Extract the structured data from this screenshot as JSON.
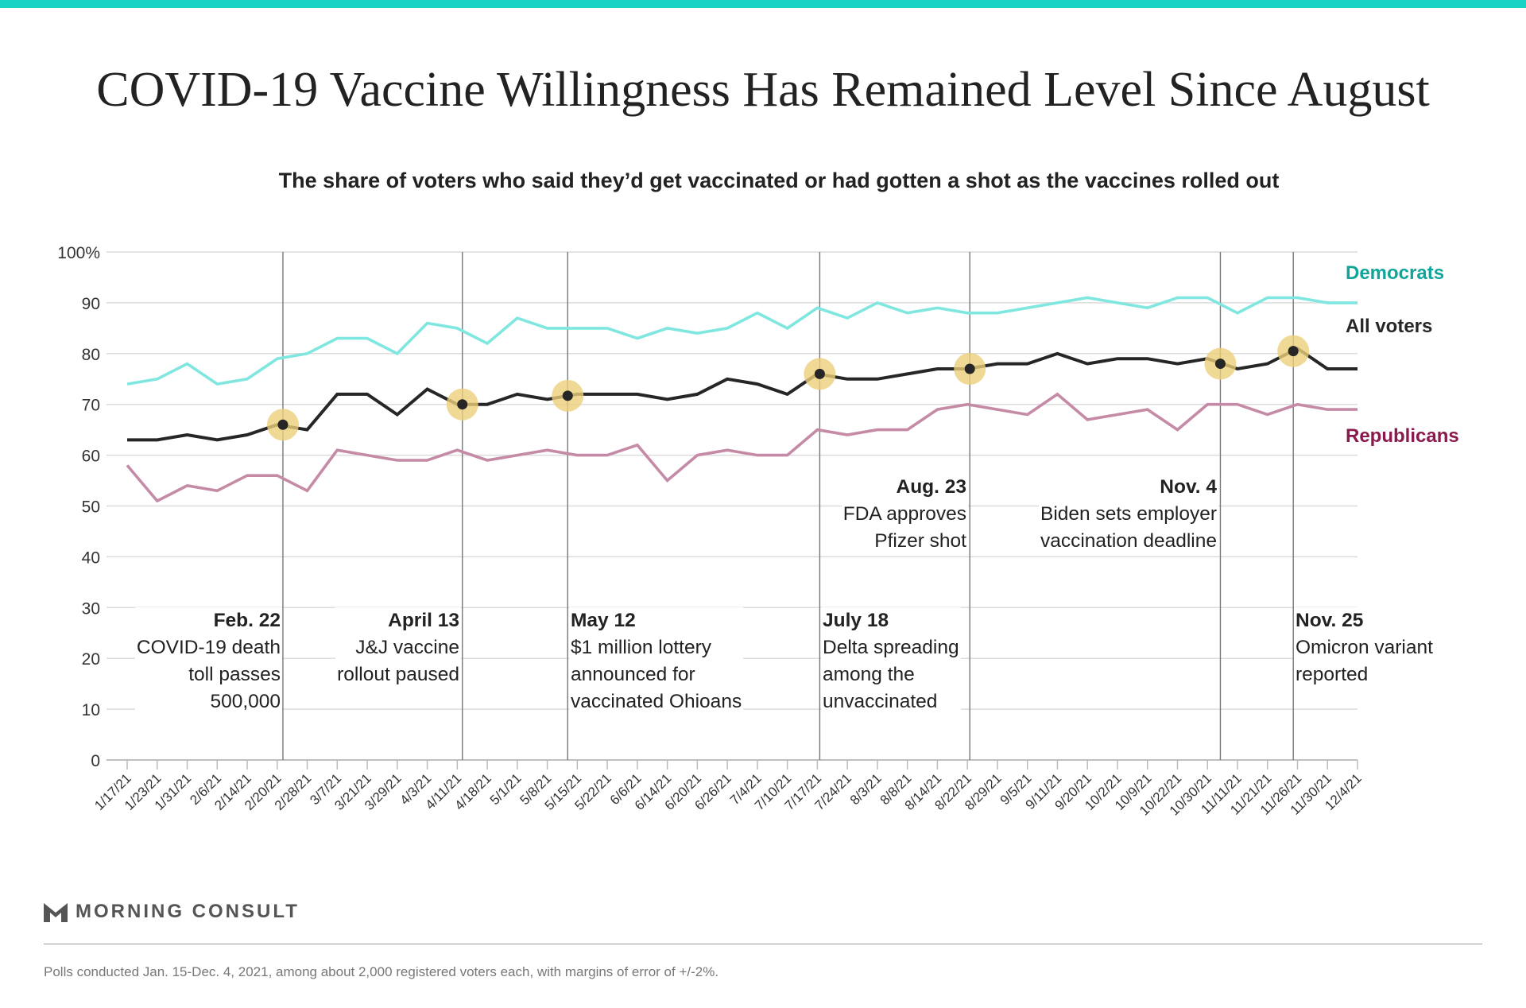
{
  "title": "COVID-19 Vaccine Willingness Has Remained Level Since August",
  "subtitle": "The share of voters who said they’d get vaccinated or had gotten a shot as the vaccines rolled out",
  "brand": "MORNING CONSULT",
  "footnote": "Polls conducted Jan. 15-Dec. 4, 2021, among about 2,000 registered voters each, with margins of error of +/-2%.",
  "colors": {
    "accent": "#19d3c5",
    "democrats": "#7fe6e0",
    "democrats_label": "#0fa59b",
    "all": "#262626",
    "republicans": "#c48aa6",
    "republicans_label": "#8a1a4e",
    "highlight": "#ecce7a"
  },
  "chart_data": {
    "type": "line",
    "title": "COVID-19 Vaccine Willingness Has Remained Level Since August",
    "ylabel": "",
    "xlabel": "",
    "ylim": [
      0,
      100
    ],
    "yticks": [
      "0",
      "10",
      "20",
      "30",
      "40",
      "50",
      "60",
      "70",
      "80",
      "90",
      "100%"
    ],
    "grid": true,
    "categories": [
      "1/17/21",
      "1/23/21",
      "1/31/21",
      "2/6/21",
      "2/14/21",
      "2/20/21",
      "2/28/21",
      "3/7/21",
      "3/21/21",
      "3/29/21",
      "4/3/21",
      "4/11/21",
      "4/18/21",
      "5/1/21",
      "5/8/21",
      "5/15/21",
      "5/22/21",
      "6/6/21",
      "6/14/21",
      "6/20/21",
      "6/26/21",
      "7/4/21",
      "7/10/21",
      "7/17/21",
      "7/24/21",
      "8/3/21",
      "8/8/21",
      "8/14/21",
      "8/22/21",
      "8/29/21",
      "9/5/21",
      "9/11/21",
      "9/20/21",
      "10/2/21",
      "10/9/21",
      "10/22/21",
      "10/30/21",
      "11/11/21",
      "11/21/21",
      "11/26/21",
      "11/30/21",
      "12/4/21"
    ],
    "series": [
      {
        "name": "Democrats",
        "key": "democrats",
        "values": [
          74,
          75,
          78,
          74,
          75,
          79,
          80,
          83,
          83,
          80,
          86,
          85,
          82,
          87,
          85,
          85,
          85,
          83,
          85,
          84,
          85,
          88,
          85,
          89,
          87,
          90,
          88,
          89,
          88,
          88,
          89,
          90,
          91,
          90,
          89,
          91,
          91,
          88,
          91,
          91,
          90,
          90
        ]
      },
      {
        "name": "All voters",
        "key": "all",
        "values": [
          63,
          63,
          64,
          63,
          64,
          66,
          65,
          72,
          72,
          68,
          73,
          70,
          70,
          72,
          71,
          72,
          72,
          72,
          71,
          72,
          75,
          74,
          72,
          76,
          75,
          75,
          76,
          77,
          77,
          78,
          78,
          80,
          78,
          79,
          79,
          78,
          79,
          77,
          78,
          81,
          77,
          77
        ]
      },
      {
        "name": "Republicans",
        "key": "republicans",
        "values": [
          58,
          51,
          54,
          53,
          56,
          56,
          53,
          61,
          60,
          59,
          59,
          61,
          59,
          60,
          61,
          60,
          60,
          62,
          55,
          60,
          61,
          60,
          60,
          65,
          64,
          65,
          65,
          69,
          70,
          69,
          68,
          72,
          67,
          68,
          69,
          65,
          70,
          70,
          68,
          70,
          69,
          69
        ]
      }
    ],
    "events": [
      {
        "date": "Feb. 22",
        "x_index": 5.19,
        "value": 66,
        "lines": [
          "COVID-19 death",
          "toll passes",
          "500,000"
        ]
      },
      {
        "date": "April 13",
        "x_index": 11.17,
        "value": 70,
        "lines": [
          "J&J vaccine",
          "rollout paused"
        ]
      },
      {
        "date": "May 12",
        "x_index": 14.68,
        "value": 71.7,
        "lines": [
          "$1 million lottery",
          "announced for",
          "vaccinated Ohioans"
        ]
      },
      {
        "date": "July 18",
        "x_index": 23.08,
        "value": 76,
        "lines": [
          "Delta spreading",
          "among the",
          "unvaccinated"
        ]
      },
      {
        "date": "Aug. 23",
        "x_index": 28.08,
        "value": 77,
        "lines": [
          "FDA approves",
          "Pfizer shot"
        ]
      },
      {
        "date": "Nov. 4",
        "x_index": 36.43,
        "value": 78,
        "lines": [
          "Biden sets employer",
          "vaccination deadline"
        ]
      },
      {
        "date": "Nov. 25",
        "x_index": 38.86,
        "value": 80.5,
        "lines": [
          "Omicron variant",
          "reported"
        ]
      }
    ]
  }
}
